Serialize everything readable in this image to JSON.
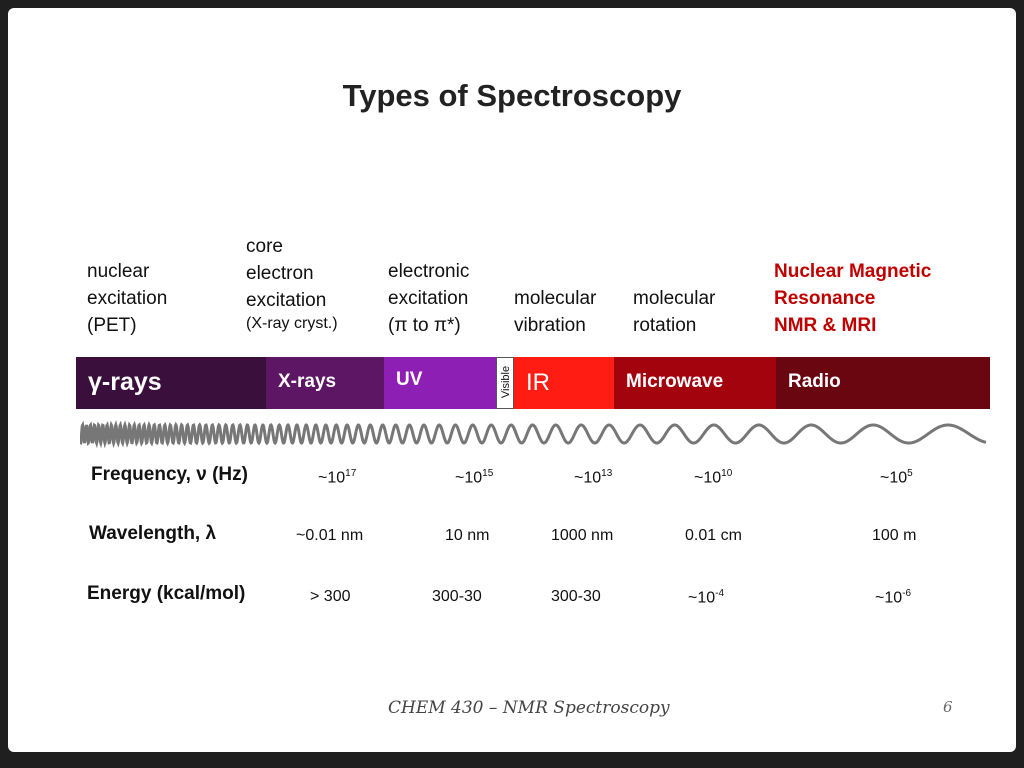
{
  "title": "Types of Spectroscopy",
  "descriptions": {
    "nuclear": [
      "nuclear",
      "excitation",
      "(PET)"
    ],
    "core": [
      "core",
      "electron",
      "excitation",
      "(X-ray cryst.)"
    ],
    "electronic": [
      "electronic",
      "excitation",
      "(π to π*)"
    ],
    "vibration": [
      "molecular",
      "vibration"
    ],
    "rotation": [
      "molecular",
      "rotation"
    ],
    "nmr": [
      "Nuclear Magnetic",
      "Resonance",
      "NMR & MRI"
    ]
  },
  "spectrum": [
    {
      "label": "γ-rays",
      "color": "#3a0f3c"
    },
    {
      "label": "X-rays",
      "color": "#5c1663"
    },
    {
      "label": "UV",
      "color": "#8e1fb4"
    },
    {
      "label": "Visible",
      "color": "#ffffff"
    },
    {
      "label": "IR",
      "color": "#ff1c12"
    },
    {
      "label": "Microwave",
      "color": "#a3030c"
    },
    {
      "label": "Radio",
      "color": "#6a0610"
    }
  ],
  "rows": {
    "frequency": {
      "label": "Frequency, ν (Hz)",
      "values": [
        {
          "base": "~10",
          "exp": "17"
        },
        {
          "base": "~10",
          "exp": "15"
        },
        {
          "base": "~10",
          "exp": "13"
        },
        {
          "base": "~10",
          "exp": "10"
        },
        {
          "base": "~10",
          "exp": "5"
        }
      ]
    },
    "wavelength": {
      "label": "Wavelength, λ",
      "values": [
        {
          "base": "~0.01 nm",
          "exp": ""
        },
        {
          "base": "10 nm",
          "exp": ""
        },
        {
          "base": "1000 nm",
          "exp": ""
        },
        {
          "base": "0.01 cm",
          "exp": ""
        },
        {
          "base": "100 m",
          "exp": ""
        }
      ]
    },
    "energy": {
      "label": "Energy (kcal/mol)",
      "values": [
        {
          "base": "> 300",
          "exp": ""
        },
        {
          "base": "300-30",
          "exp": ""
        },
        {
          "base": "300-30",
          "exp": ""
        },
        {
          "base": "~10",
          "exp": "-4"
        },
        {
          "base": "~10",
          "exp": "-6"
        }
      ]
    }
  },
  "footer": "CHEM 430 – NMR Spectroscopy",
  "page_number": "6"
}
